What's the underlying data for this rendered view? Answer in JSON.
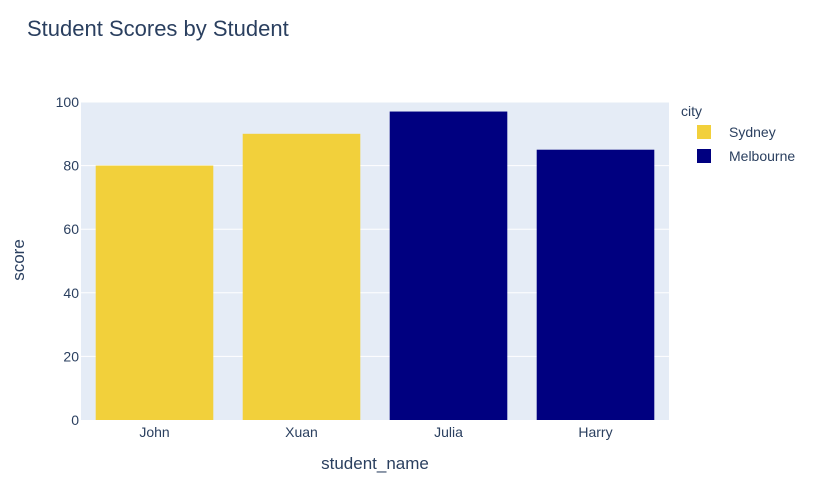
{
  "chart_data": {
    "type": "bar",
    "title": "Student Scores by Student",
    "xlabel": "student_name",
    "ylabel": "score",
    "ylim": [
      0,
      100
    ],
    "yticks": [
      0,
      20,
      40,
      60,
      80,
      100
    ],
    "grid": true,
    "legend_title": "city",
    "legend_placement": "top-right",
    "categories": [
      "John",
      "Xuan",
      "Julia",
      "Harry"
    ],
    "series": [
      {
        "name": "Sydney",
        "color": "#f2d03b",
        "values": [
          80,
          90,
          null,
          null
        ]
      },
      {
        "name": "Melbourne",
        "color": "#000080",
        "values": [
          null,
          null,
          97,
          85
        ]
      }
    ]
  },
  "colors": {
    "plot_background": "#e5ecf6",
    "gridline": "#ffffff",
    "text": "#2a3f5f"
  }
}
